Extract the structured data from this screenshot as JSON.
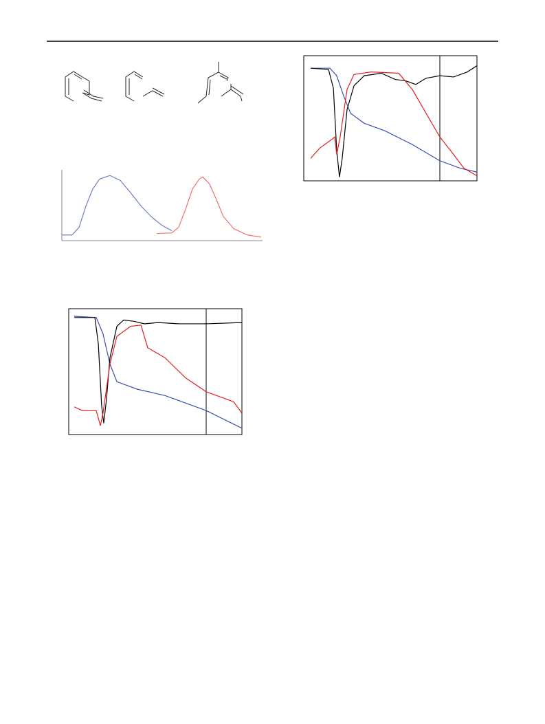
{
  "chart_data": [
    {
      "type": "line",
      "xlim": [
        0,
        100
      ],
      "ylim": [
        0,
        1
      ],
      "series": [
        {
          "color": "#6f7fc8",
          "x": [
            0,
            5.1,
            8.6,
            12,
            15.4,
            18.8,
            24,
            29.1,
            34.2,
            39.4,
            44.5,
            49.7,
            54.8
          ],
          "values": [
            0.08,
            0.08,
            0.19,
            0.49,
            0.73,
            0.87,
            0.92,
            0.85,
            0.68,
            0.49,
            0.34,
            0.22,
            0.14
          ]
        },
        {
          "color": "#f07070",
          "x": [
            47.3,
            54.8,
            58.2,
            61.6,
            65.1,
            68.5,
            70.2,
            73.6,
            77,
            80.5,
            85.6,
            92.5,
            99.3
          ],
          "values": [
            0.1,
            0.11,
            0.19,
            0.44,
            0.73,
            0.87,
            0.9,
            0.8,
            0.58,
            0.34,
            0.17,
            0.08,
            0.05
          ]
        }
      ]
    },
    {
      "type": "line",
      "xlim": [
        0,
        100
      ],
      "ylim": [
        0,
        1
      ],
      "series": [
        {
          "color": "#3a4fb0",
          "x": [
            4,
            15.1,
            19,
            23,
            27,
            34.9,
            46.8,
            62.7,
            78.6,
            90.5,
            100
          ],
          "values": [
            0.9,
            0.9,
            0.84,
            0.68,
            0.54,
            0.46,
            0.4,
            0.29,
            0.16,
            0.1,
            0.07
          ]
        },
        {
          "color": "#000000",
          "x": [
            4,
            14.3,
            17.1,
            19,
            20.6,
            22.2,
            25,
            29,
            34.9,
            44.8,
            52.8,
            58.7,
            64.7,
            70.6,
            78.6,
            86.5,
            94.4,
            100
          ],
          "values": [
            0.9,
            0.89,
            0.74,
            0.25,
            0.03,
            0.18,
            0.57,
            0.76,
            0.84,
            0.86,
            0.81,
            0.8,
            0.77,
            0.82,
            0.84,
            0.83,
            0.87,
            0.92
          ]
        },
        {
          "color": "#e02020",
          "x": [
            4,
            9.1,
            15.1,
            17.9,
            19,
            21,
            25,
            29,
            38.9,
            54.8,
            62.7,
            70.6,
            78.6,
            86.5,
            92.5,
            100
          ],
          "values": [
            0.18,
            0.26,
            0.32,
            0.35,
            0.21,
            0.35,
            0.73,
            0.85,
            0.87,
            0.86,
            0.73,
            0.54,
            0.35,
            0.21,
            0.1,
            0.04
          ]
        }
      ]
    },
    {
      "type": "line",
      "xlim": [
        0,
        100
      ],
      "ylim": [
        0,
        1
      ],
      "series": [
        {
          "color": "#3a4fb0",
          "x": [
            3.2,
            15.9,
            19.8,
            23.8,
            27.8,
            39.7,
            55.6,
            79.4,
            100
          ],
          "values": [
            0.94,
            0.93,
            0.8,
            0.56,
            0.42,
            0.36,
            0.31,
            0.19,
            0.05
          ]
        },
        {
          "color": "#000000",
          "x": [
            3.2,
            15.1,
            17.1,
            19,
            20.2,
            21.8,
            23.8,
            27.8,
            31.7,
            37.7,
            43.7,
            51.6,
            63.5,
            79.4,
            100
          ],
          "values": [
            0.93,
            0.93,
            0.72,
            0.23,
            0.09,
            0.28,
            0.61,
            0.86,
            0.91,
            0.9,
            0.88,
            0.89,
            0.88,
            0.88,
            0.89
          ]
        },
        {
          "color": "#e02020",
          "x": [
            3.2,
            7.9,
            15.9,
            18.3,
            19.8,
            23.8,
            27.8,
            35.7,
            41.7,
            45.6,
            55.6,
            67.5,
            79.4,
            87.3,
            95.2,
            100
          ],
          "values": [
            0.22,
            0.19,
            0.19,
            0.07,
            0.17,
            0.56,
            0.78,
            0.86,
            0.87,
            0.69,
            0.61,
            0.45,
            0.34,
            0.3,
            0.26,
            0.17
          ]
        }
      ]
    }
  ]
}
